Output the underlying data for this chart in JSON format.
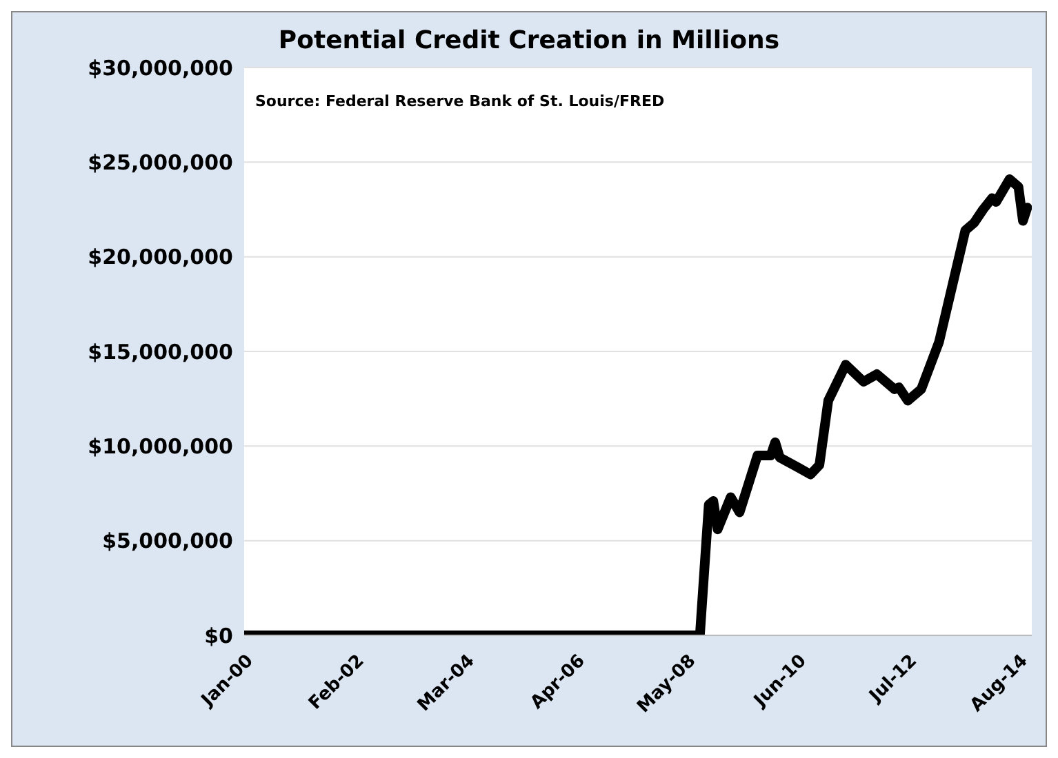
{
  "chart_data": {
    "type": "line",
    "title": "Potential Credit Creation in Millions",
    "annotations": [
      "Source: Federal Reserve Bank of St. Louis/FRED"
    ],
    "x": [
      "2000-01",
      "2008-08",
      "2008-10",
      "2008-11",
      "2008-12",
      "2009-03",
      "2009-05",
      "2009-09",
      "2009-12",
      "2010-01",
      "2010-02",
      "2010-06",
      "2010-09",
      "2010-11",
      "2011-01",
      "2011-05",
      "2011-09",
      "2011-12",
      "2012-04",
      "2012-05",
      "2012-07",
      "2012-10",
      "2013-02",
      "2013-08",
      "2013-10",
      "2013-12",
      "2014-02",
      "2014-03",
      "2014-06",
      "2014-08",
      "2014-09",
      "2014-10"
    ],
    "series": [
      {
        "color": "#000000",
        "values": [
          0,
          0,
          6900000,
          7100000,
          5600000,
          7300000,
          6500000,
          9500000,
          9500000,
          10200000,
          9400000,
          8900000,
          8500000,
          9000000,
          12400000,
          14300000,
          13400000,
          13800000,
          13000000,
          13100000,
          12400000,
          13000000,
          15500000,
          21400000,
          21800000,
          22500000,
          23100000,
          22900000,
          24100000,
          23700000,
          21900000,
          22600000
        ]
      }
    ],
    "xlim": [
      "2000-01",
      "2014-11"
    ],
    "xticks": [
      {
        "value": "2000-01",
        "label": "Jan-00"
      },
      {
        "value": "2002-02",
        "label": "Feb-02"
      },
      {
        "value": "2004-03",
        "label": "Mar-04"
      },
      {
        "value": "2006-04",
        "label": "Apr-06"
      },
      {
        "value": "2008-05",
        "label": "May-08"
      },
      {
        "value": "2010-06",
        "label": "Jun-10"
      },
      {
        "value": "2012-07",
        "label": "Jul-12"
      },
      {
        "value": "2014-08",
        "label": "Aug-14"
      }
    ],
    "ylim": [
      0,
      30000000
    ],
    "yticks": [
      {
        "value": 0,
        "label": "$0"
      },
      {
        "value": 5000000,
        "label": "$5,000,000"
      },
      {
        "value": 10000000,
        "label": "$10,000,000"
      },
      {
        "value": 15000000,
        "label": "$15,000,000"
      },
      {
        "value": 20000000,
        "label": "$20,000,000"
      },
      {
        "value": 25000000,
        "label": "$25,000,000"
      },
      {
        "value": 30000000,
        "label": "$30,000,000"
      }
    ],
    "grid": "y",
    "legend": false,
    "marker": "none",
    "line_style": "solid"
  }
}
